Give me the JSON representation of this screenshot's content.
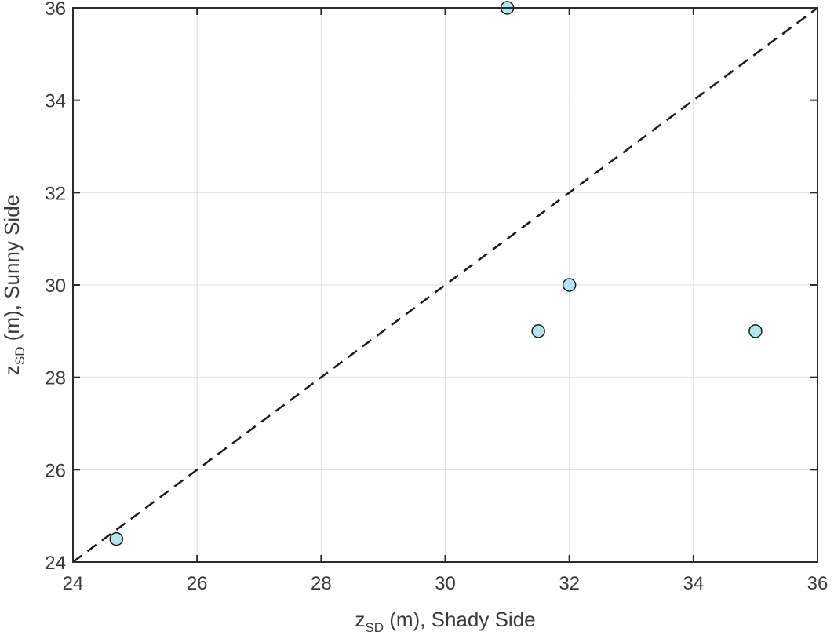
{
  "chart_data": {
    "type": "scatter",
    "xlabel": {
      "main": "z",
      "sub": "SD",
      "rest": " (m), Shady Side"
    },
    "ylabel": {
      "main": "z",
      "sub": "SD",
      "rest": " (m), Sunny Side"
    },
    "xlim": [
      24,
      36
    ],
    "ylim": [
      24,
      36
    ],
    "xticks": [
      24,
      26,
      28,
      30,
      32,
      34,
      36
    ],
    "yticks": [
      24,
      26,
      28,
      30,
      32,
      34,
      36
    ],
    "grid": true,
    "reference_line": {
      "x": [
        24,
        36
      ],
      "y": [
        24,
        36
      ],
      "style": "dashed"
    },
    "points": [
      {
        "x": 24.7,
        "y": 24.5
      },
      {
        "x": 31.0,
        "y": 36.0
      },
      {
        "x": 31.5,
        "y": 29.0
      },
      {
        "x": 32.0,
        "y": 30.0
      },
      {
        "x": 35.0,
        "y": 29.0
      }
    ],
    "colors": {
      "marker_fill": "#aee6f3",
      "marker_edge": "#1a1a1a",
      "reference_line": "#1a1a1a"
    }
  }
}
